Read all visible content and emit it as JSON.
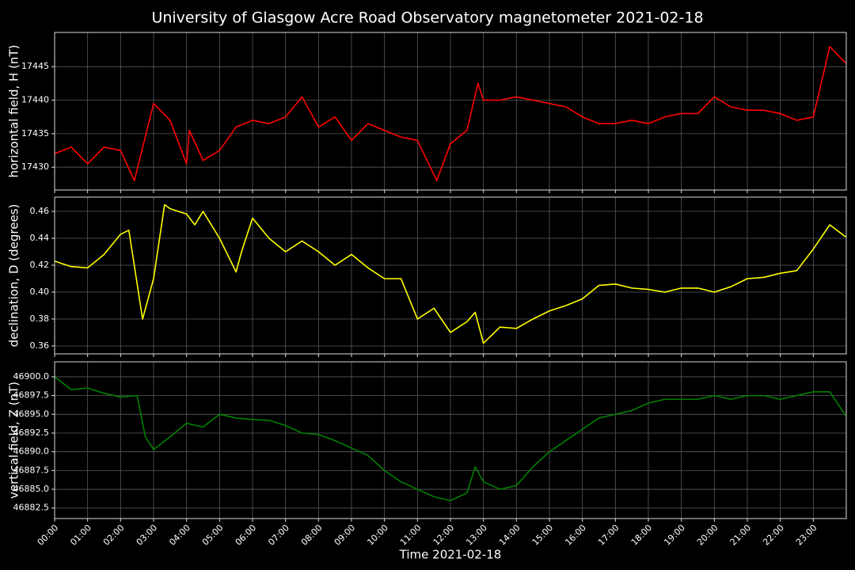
{
  "title": "University of Glasgow Acre Road Observatory magnetometer 2021-02-18",
  "chart_data": [
    {
      "type": "line",
      "ylabel": "horizontal field, H (nT)",
      "color": "#ff0000",
      "x": [
        "00:00",
        "00:30",
        "01:00",
        "01:30",
        "02:00",
        "02:25",
        "03:00",
        "03:30",
        "04:00",
        "04:05",
        "04:30",
        "05:00",
        "05:30",
        "06:00",
        "06:30",
        "07:00",
        "07:30",
        "08:00",
        "08:30",
        "09:00",
        "09:30",
        "10:00",
        "10:30",
        "11:00",
        "11:35",
        "12:00",
        "12:30",
        "12:50",
        "13:00",
        "13:30",
        "14:00",
        "14:30",
        "15:00",
        "15:30",
        "16:00",
        "16:30",
        "17:00",
        "17:30",
        "18:00",
        "18:30",
        "19:00",
        "19:30",
        "20:00",
        "20:30",
        "21:00",
        "21:30",
        "22:00",
        "22:30",
        "23:00",
        "23:30",
        "23:59"
      ],
      "values": [
        17432,
        17433,
        17430.5,
        17433,
        17432.5,
        17428,
        17439.5,
        17437,
        17430.5,
        17435.5,
        17431,
        17432.5,
        17436,
        17437,
        17436.5,
        17437.5,
        17440.5,
        17436,
        17437.5,
        17434,
        17436.5,
        17435.5,
        17434.5,
        17434,
        17428,
        17433.5,
        17435.5,
        17442.5,
        17440,
        17440,
        17440.5,
        17440,
        17439.5,
        17439,
        17437.5,
        17436.5,
        17436.5,
        17437,
        17436.5,
        17437.5,
        17438,
        17438,
        17440.5,
        17439,
        17438.5,
        17438.5,
        17438,
        17437,
        17437.5,
        17448,
        17445.5
      ],
      "xlim": [
        "00:00",
        "24:00"
      ],
      "ylim": [
        17426.6,
        17450.1
      ],
      "yticks": [
        17430,
        17435,
        17440,
        17445
      ],
      "grid": true
    },
    {
      "type": "line",
      "ylabel": "declination, D (degrees)",
      "color": "#ffff00",
      "x": [
        "00:00",
        "00:30",
        "01:00",
        "01:30",
        "02:00",
        "02:15",
        "02:40",
        "03:00",
        "03:20",
        "03:30",
        "04:00",
        "04:15",
        "04:30",
        "05:00",
        "05:30",
        "05:40",
        "06:00",
        "06:30",
        "07:00",
        "07:30",
        "08:00",
        "08:30",
        "09:00",
        "09:30",
        "10:00",
        "10:30",
        "11:00",
        "11:30",
        "12:00",
        "12:30",
        "12:45",
        "13:00",
        "13:30",
        "14:00",
        "14:30",
        "15:00",
        "15:30",
        "16:00",
        "16:30",
        "17:00",
        "17:30",
        "18:00",
        "18:30",
        "19:00",
        "19:30",
        "20:00",
        "20:30",
        "21:00",
        "21:30",
        "22:00",
        "22:30",
        "23:00",
        "23:30",
        "23:59"
      ],
      "values": [
        0.423,
        0.419,
        0.418,
        0.428,
        0.443,
        0.446,
        0.38,
        0.41,
        0.465,
        0.462,
        0.458,
        0.45,
        0.46,
        0.44,
        0.415,
        0.43,
        0.455,
        0.44,
        0.43,
        0.438,
        0.43,
        0.42,
        0.428,
        0.418,
        0.41,
        0.41,
        0.38,
        0.388,
        0.37,
        0.378,
        0.385,
        0.362,
        0.374,
        0.373,
        0.38,
        0.386,
        0.39,
        0.395,
        0.405,
        0.406,
        0.403,
        0.402,
        0.4,
        0.403,
        0.403,
        0.4,
        0.404,
        0.41,
        0.411,
        0.414,
        0.416,
        0.432,
        0.45,
        0.441
      ],
      "xlim": [
        "00:00",
        "24:00"
      ],
      "ylim": [
        0.3541,
        0.4706
      ],
      "yticks": [
        0.36,
        0.38,
        {
          "value": 0.4,
          "label": "0.40"
        },
        0.42,
        0.44,
        0.46
      ],
      "grid": true
    },
    {
      "type": "line",
      "ylabel": "vertical field, Z (nT)",
      "xlabel": "Time 2021-02-18",
      "color": "#008000",
      "x": [
        "00:00",
        "00:30",
        "01:00",
        "01:30",
        "02:00",
        "02:30",
        "02:45",
        "03:00",
        "03:30",
        "04:00",
        "04:30",
        "05:00",
        "05:30",
        "06:00",
        "06:30",
        "07:00",
        "07:30",
        "08:00",
        "08:30",
        "09:00",
        "09:30",
        "10:00",
        "10:30",
        "11:00",
        "11:30",
        "12:00",
        "12:30",
        "12:45",
        "13:00",
        "13:30",
        "14:00",
        "14:30",
        "15:00",
        "15:30",
        "16:00",
        "16:30",
        "17:00",
        "17:30",
        "18:00",
        "18:30",
        "19:00",
        "19:30",
        "20:00",
        "20:30",
        "21:00",
        "21:30",
        "22:00",
        "22:30",
        "23:00",
        "23:30",
        "23:59"
      ],
      "values": [
        46900.0,
        46898.3,
        46898.5,
        46897.8,
        46897.3,
        46897.5,
        46892,
        46890.3,
        46892,
        46893.8,
        46893.3,
        46895,
        46894.5,
        46894.3,
        46894.2,
        46893.5,
        46892.5,
        46892.3,
        46891.5,
        46890.5,
        46889.5,
        46887.5,
        46886,
        46885,
        46884,
        46883.5,
        46884.5,
        46888,
        46886,
        46885,
        46885.5,
        46888,
        46890,
        46891.5,
        46893,
        46894.5,
        46895,
        46895.5,
        46896.5,
        46897,
        46897,
        46897,
        46897.5,
        46897,
        46897.5,
        46897.5,
        46897,
        46897.5,
        46898,
        46898,
        46894.8
      ],
      "xlim": [
        "00:00",
        "24:00"
      ],
      "ylim": [
        46881.1,
        46902.0
      ],
      "yticks": [
        {
          "value": 46882.5,
          "label": "46882.5"
        },
        {
          "value": 46885,
          "label": "46885.0"
        },
        46887.5,
        {
          "value": 46890,
          "label": "46890.0"
        },
        46892.5,
        {
          "value": 46895,
          "label": "46895.0"
        },
        46897.5,
        {
          "value": 46900,
          "label": "46900.0"
        }
      ],
      "xticks": [
        "00:00",
        "01:00",
        "02:00",
        "03:00",
        "04:00",
        "05:00",
        "06:00",
        "07:00",
        "08:00",
        "09:00",
        "10:00",
        "11:00",
        "12:00",
        "13:00",
        "14:00",
        "15:00",
        "16:00",
        "17:00",
        "18:00",
        "19:00",
        "20:00",
        "21:00",
        "22:00",
        "23:00"
      ],
      "grid": true
    }
  ]
}
